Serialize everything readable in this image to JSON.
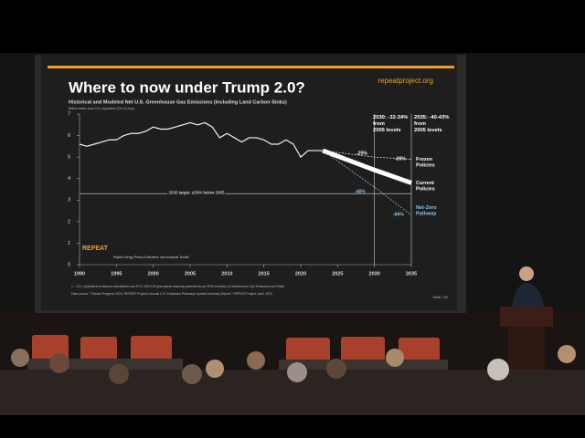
{
  "chart_data": {
    "type": "line",
    "title": "Where to now under Trump 2.0?",
    "url": "repeatproject.org",
    "subtitle": "Historical and Modeled Net U.S. Greenhouse Gas Emissions (Including Land Carbon Sinks)",
    "y_label": "Billion metric tons CO₂ equivalent (Gt CO₂e/yr)",
    "xlim": [
      1990,
      2035
    ],
    "ylim": [
      0,
      7
    ],
    "xticks": [
      1990,
      1995,
      2000,
      2005,
      2010,
      2015,
      2020,
      2025,
      2030,
      2035
    ],
    "yticks": [
      0,
      1,
      2,
      3,
      4,
      5,
      6,
      7
    ],
    "target_line": 3.3,
    "target_label": "2030 target: ≤50% below 2005",
    "series": [
      {
        "color": "#f2f2f2",
        "x": [
          1990,
          1991,
          1992,
          1993,
          1994,
          1995,
          1996,
          1997,
          1998,
          1999,
          2000,
          2001,
          2002,
          2003,
          2004,
          2005,
          2006,
          2007,
          2008,
          2009,
          2010,
          2011,
          2012,
          2013,
          2014,
          2015,
          2016,
          2017,
          2018,
          2019,
          2020,
          2021,
          2022,
          2023
        ],
        "values": [
          5.6,
          5.5,
          5.6,
          5.7,
          5.8,
          5.8,
          6.0,
          6.1,
          6.1,
          6.2,
          6.4,
          6.3,
          6.3,
          6.4,
          6.5,
          6.6,
          6.5,
          6.6,
          6.4,
          5.9,
          6.1,
          5.9,
          5.7,
          5.9,
          5.9,
          5.8,
          5.6,
          5.6,
          5.8,
          5.6,
          5.0,
          5.3,
          5.3,
          5.3
        ]
      },
      {
        "name": "Frozen Policies",
        "color": "#dcdcdc",
        "x": [
          2023,
          2030,
          2035
        ],
        "values": [
          5.3,
          5.0,
          4.9
        ]
      },
      {
        "name": "Current Policies",
        "color": "#ffffff",
        "x": [
          2023,
          2030,
          2035
        ],
        "values": [
          5.3,
          4.4,
          3.8
        ]
      },
      {
        "name": "Net-Zero Pathway",
        "color": "#8fc4e8",
        "x": [
          2023,
          2030,
          2035
        ],
        "values": [
          5.3,
          3.6,
          2.3
        ]
      }
    ],
    "annotations": [
      "2030: -32-34% from 2005 levels",
      "2035: -40-43% from 2005 levels",
      "-25%",
      "-26%",
      "-46%",
      "-66%"
    ],
    "brand": "REPEAT",
    "brand_sub": "Rapid Energy Policy Evaluation and Analysis Toolkit",
    "footnotes": [
      "1 – CO₂ equivalent emissions calculations use IPCC AR4 100 year global warming potential as per EPA Inventory of Greenhouse Gas Emissions and Sinks.",
      "Data source: \"Climate Progress 2024: REPEAT Project's Annual U.S. Emissions Pathways Update Summary Report,\" REPEAT Project, April, 2023"
    ],
    "slide_number": "Slide | 52"
  }
}
